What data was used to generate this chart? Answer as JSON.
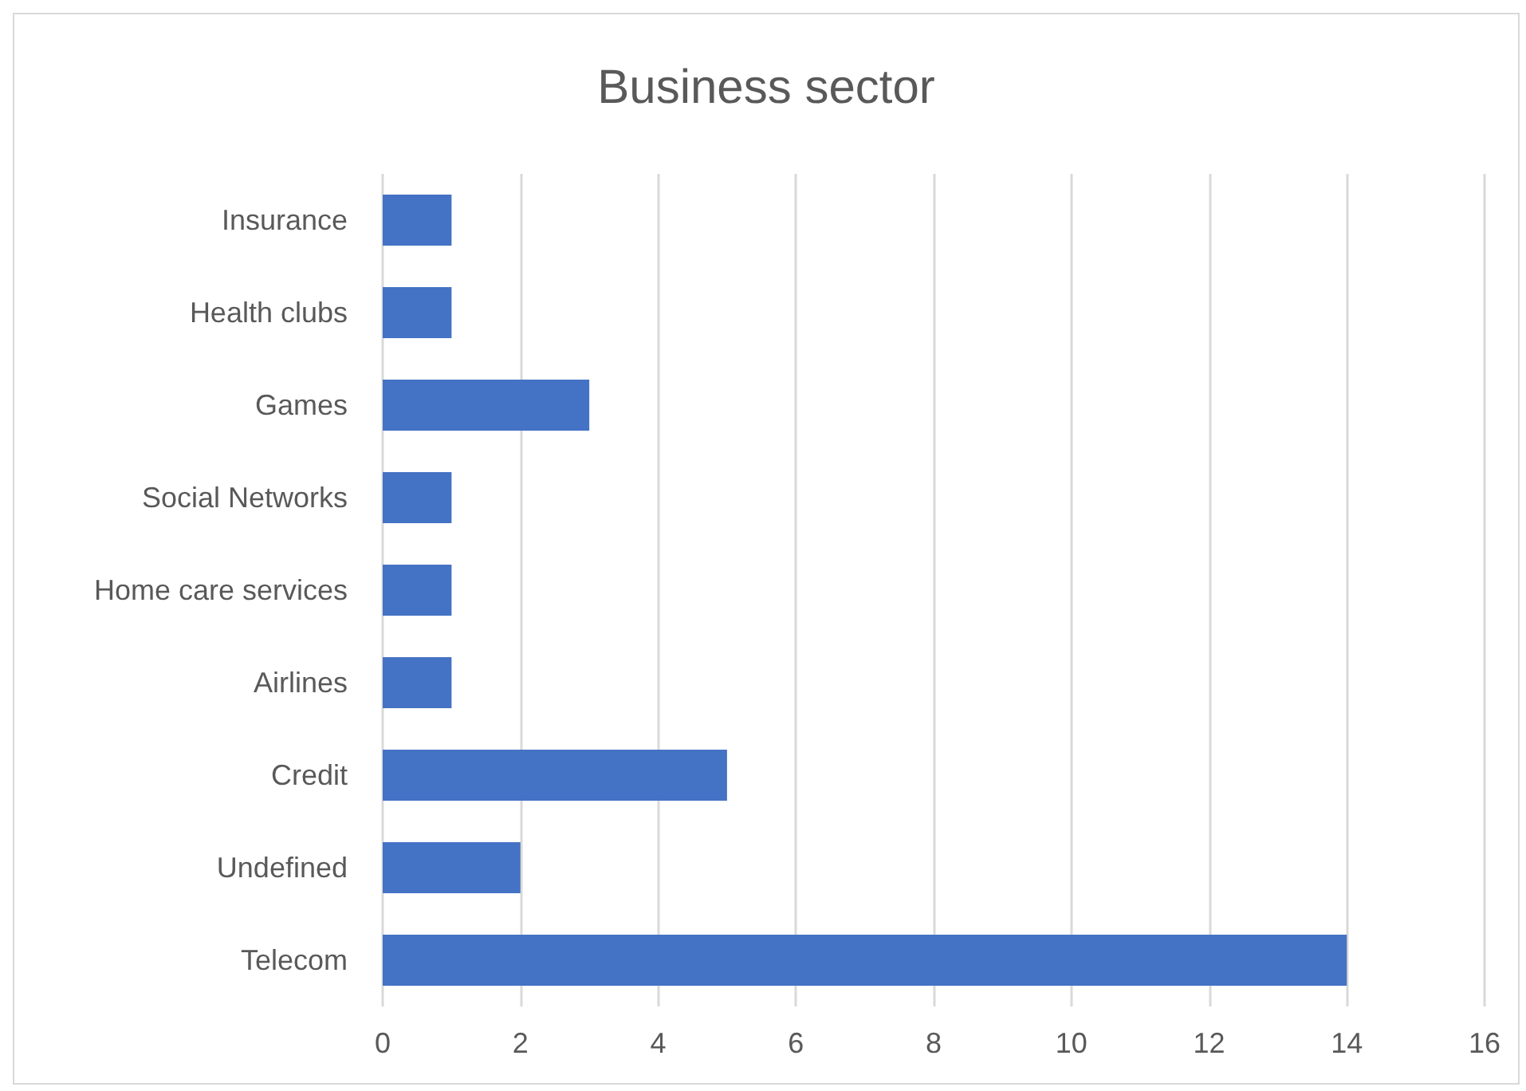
{
  "chart_data": {
    "type": "bar",
    "orientation": "horizontal",
    "title": "Business sector",
    "categories": [
      "Insurance",
      "Health clubs",
      "Games",
      "Social Networks",
      "Home care services",
      "Airlines",
      "Credit",
      "Undefined",
      "Telecom"
    ],
    "values": [
      1,
      1,
      3,
      1,
      1,
      1,
      5,
      2,
      14
    ],
    "color": "#4472c4",
    "xlim": [
      0,
      16
    ],
    "xticks": [
      0,
      2,
      4,
      6,
      8,
      10,
      12,
      14,
      16
    ],
    "grid": "x"
  }
}
